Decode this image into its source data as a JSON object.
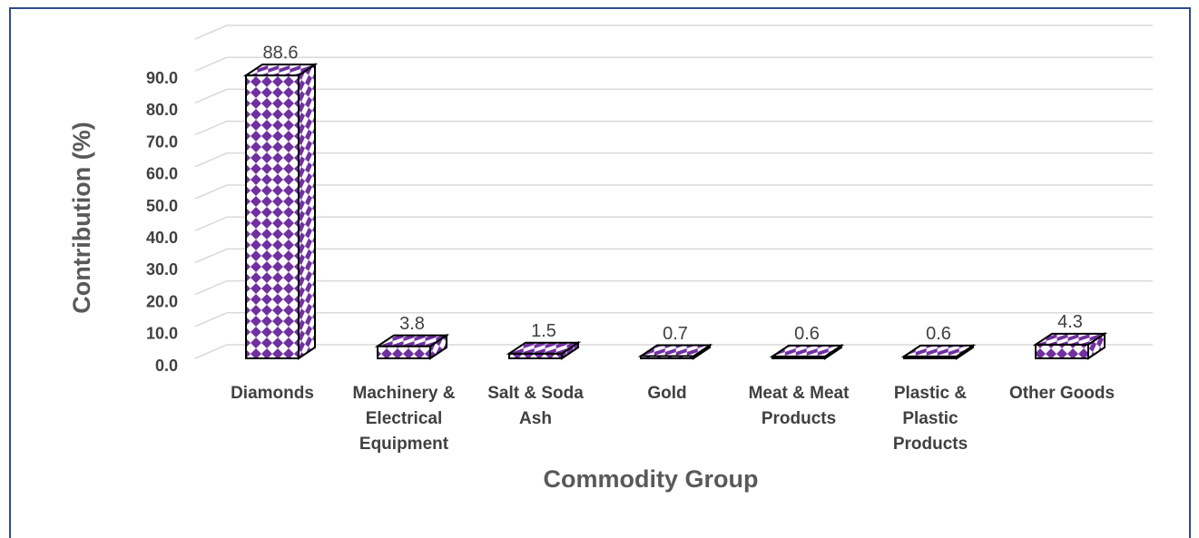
{
  "chart_data": {
    "type": "bar3d",
    "categories": [
      "Diamonds",
      "Machinery & Electrical Equipment",
      "Salt & Soda Ash",
      "Gold",
      "Meat & Meat Products",
      "Plastic & Plastic Products",
      "Other Goods"
    ],
    "values": [
      88.6,
      3.8,
      1.5,
      0.7,
      0.6,
      0.6,
      4.3
    ],
    "color": "#7030a0",
    "ylim": [
      0,
      100
    ],
    "yticks": [
      {
        "value": 0,
        "label": "0.0"
      },
      {
        "value": 10,
        "label": "10.0"
      },
      {
        "value": 20,
        "label": "20.0"
      },
      {
        "value": 30,
        "label": "30.0"
      },
      {
        "value": 40,
        "label": "40.0"
      },
      {
        "value": 50,
        "label": "50.0"
      },
      {
        "value": 60,
        "label": "60.0"
      },
      {
        "value": 70,
        "label": "70.0"
      },
      {
        "value": 80,
        "label": "80.0"
      },
      {
        "value": 90,
        "label": "90.0"
      }
    ],
    "grid": true,
    "ylabel": "Contribution (%)",
    "xlabel": "Commodity Group"
  }
}
